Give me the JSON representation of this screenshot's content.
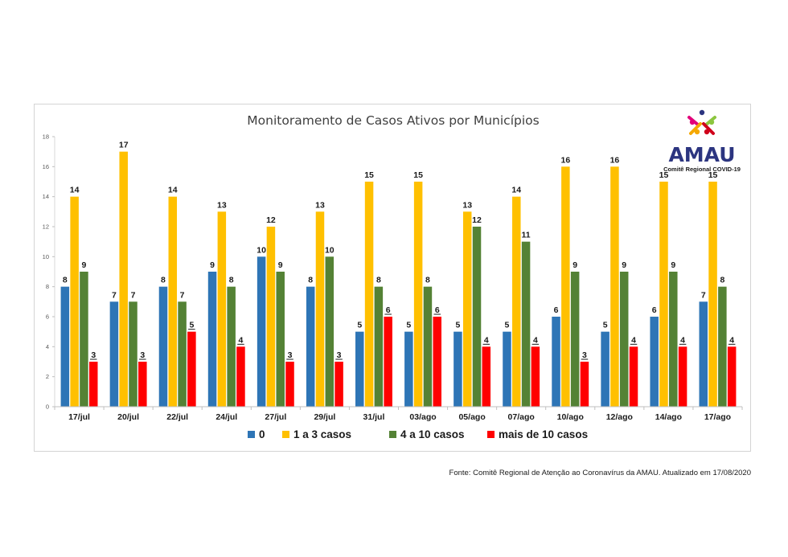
{
  "chart_data": {
    "type": "bar",
    "title": "Monitoramento de Casos Ativos por Municípios",
    "categories": [
      "17/jul",
      "20/jul",
      "22/jul",
      "24/jul",
      "27/jul",
      "29/jul",
      "31/jul",
      "03/ago",
      "05/ago",
      "07/ago",
      "10/ago",
      "12/ago",
      "14/ago",
      "17/ago"
    ],
    "ylim": [
      0,
      18
    ],
    "yticks": [
      0,
      2,
      4,
      6,
      8,
      10,
      12,
      14,
      16,
      18
    ],
    "grid": false,
    "legend_position": "bottom",
    "series": [
      {
        "name": "0",
        "color": "#2e75b6",
        "values": [
          8,
          7,
          8,
          9,
          10,
          8,
          5,
          5,
          5,
          5,
          6,
          5,
          6,
          7
        ]
      },
      {
        "name": "1 a 3 casos",
        "color": "#ffc000",
        "values": [
          14,
          17,
          14,
          13,
          12,
          13,
          15,
          15,
          13,
          14,
          16,
          16,
          15,
          15
        ]
      },
      {
        "name": "4 a 10 casos",
        "color": "#548235",
        "values": [
          9,
          7,
          7,
          8,
          9,
          10,
          8,
          8,
          12,
          11,
          9,
          9,
          9,
          8
        ]
      },
      {
        "name": "mais de 10 casos",
        "color": "#ff0000",
        "values": [
          3,
          3,
          5,
          4,
          3,
          3,
          6,
          6,
          4,
          4,
          3,
          4,
          4,
          4
        ]
      }
    ]
  },
  "logo": {
    "name": "AMAU",
    "subtitle": "Comitê Regional COVID-19",
    "colors": [
      "#2c3580",
      "#e2007a",
      "#f5a800",
      "#8cc63f",
      "#d0021b"
    ]
  },
  "source": "Fonte: Comitê Regional de Atenção ao Coronavírus da AMAU. Atualizado em 17/08/2020"
}
